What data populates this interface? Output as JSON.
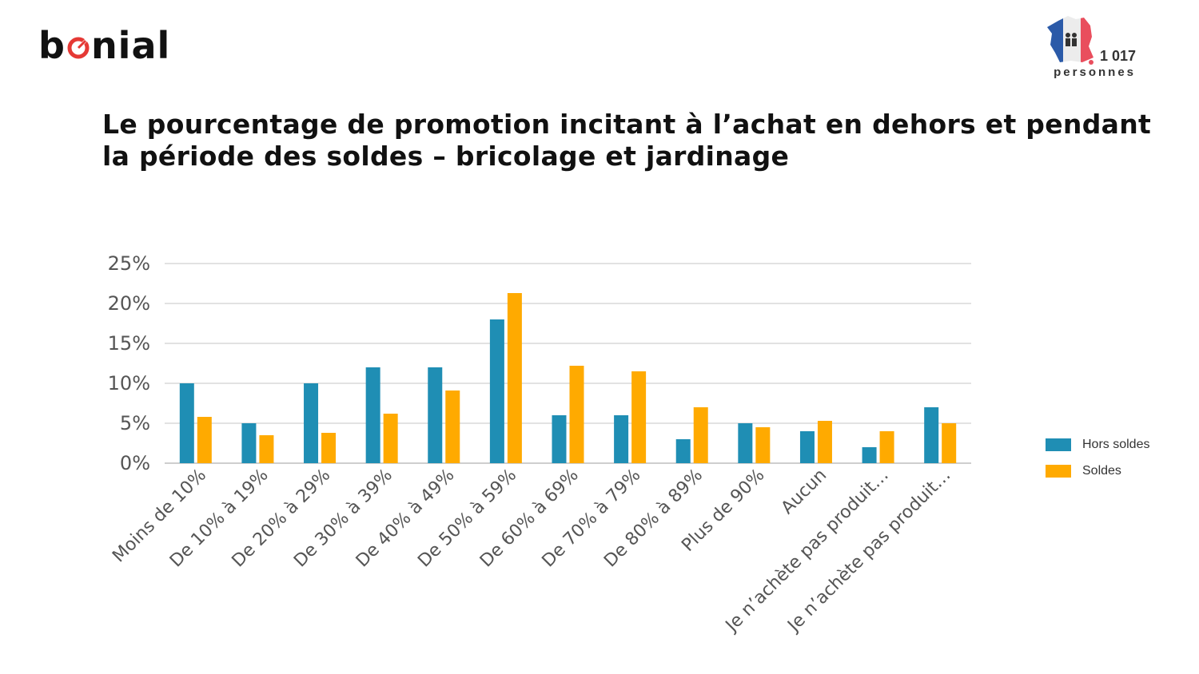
{
  "brand": {
    "name_prefix": "b",
    "name_suffix": "nial",
    "accent": "#E53935"
  },
  "badge": {
    "count": "1 017",
    "unit": "personnes",
    "flag_colors": [
      "#2B5AA8",
      "#ECECEC",
      "#E94E5D"
    ]
  },
  "chart_data": {
    "type": "bar",
    "title": "Le pourcentage de promotion incitant à l’achat en dehors et pendant la période des soldes – bricolage et jardinage",
    "categories": [
      "Moins de 10%",
      "De 10% à 19%",
      "De 20% à 29%",
      "De 30% à 39%",
      "De 40% à 49%",
      "De 50% à 59%",
      "De 60% à 69%",
      "De 70% à 79%",
      "De 80% à 89%",
      "Plus de 90%",
      "Aucun",
      "Je n’achète pas produit…",
      "Je n’achète pas produit…"
    ],
    "series": [
      {
        "name": "Hors soldes",
        "color": "#1F8EB4",
        "values": [
          10,
          5,
          10,
          12,
          12,
          18,
          6,
          6,
          3,
          5,
          4,
          2,
          7
        ]
      },
      {
        "name": "Soldes",
        "color": "#FFAA00",
        "values": [
          5.8,
          3.5,
          3.8,
          6.2,
          9.1,
          21.3,
          12.2,
          11.5,
          7,
          4.5,
          5.3,
          4,
          5
        ]
      }
    ],
    "y_ticks": [
      "0%",
      "5%",
      "10%",
      "15%",
      "20%",
      "25%"
    ],
    "ylim": [
      0,
      25
    ],
    "xlabel": "",
    "ylabel": "",
    "grid": true,
    "legend_position": "right"
  }
}
